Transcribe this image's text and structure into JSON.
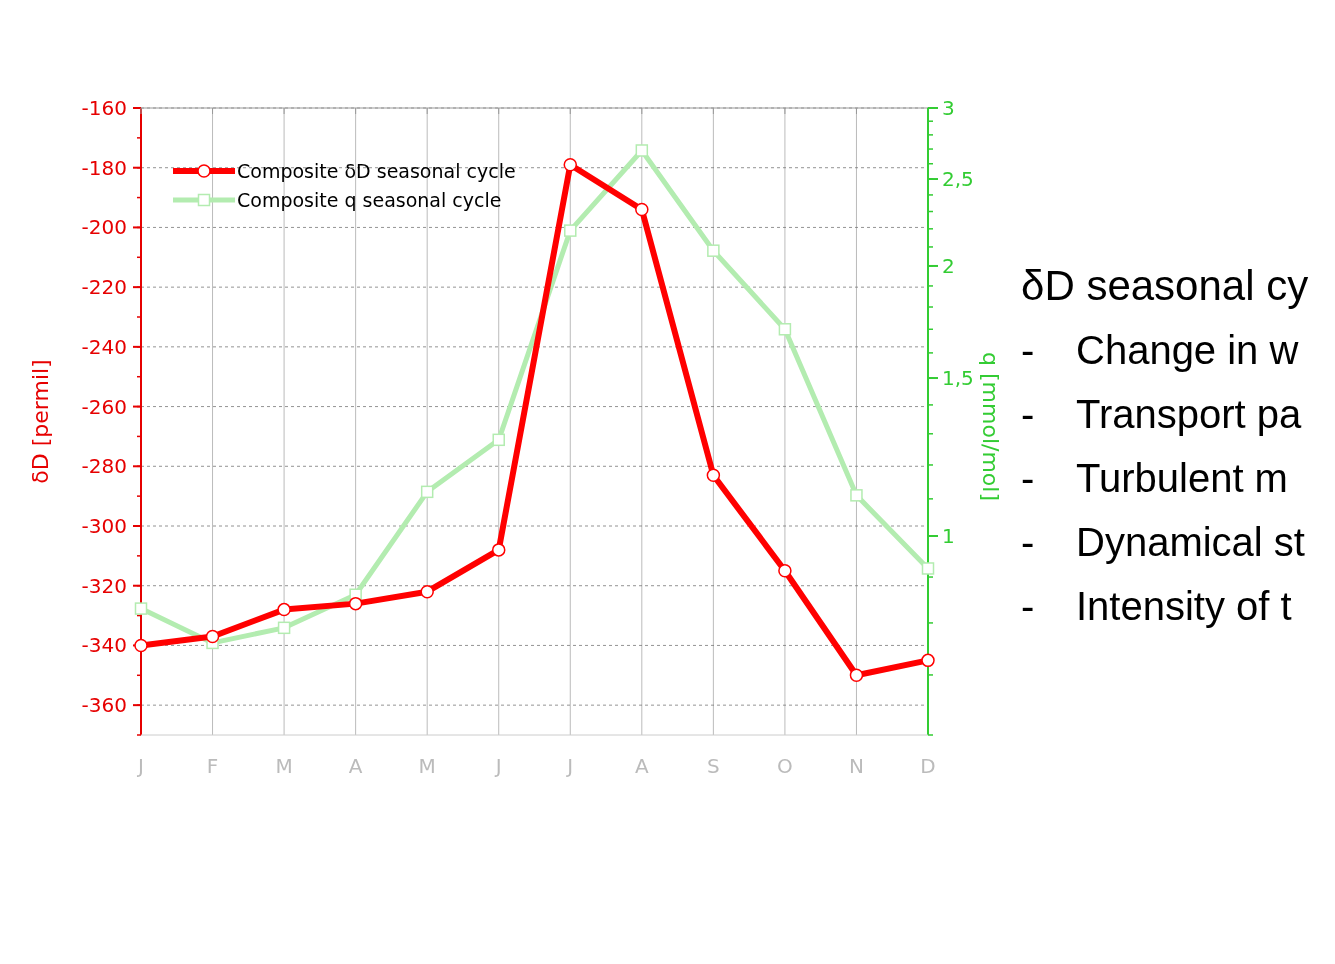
{
  "chart_data": [
    {
      "type": "line",
      "categories": [
        "J",
        "F",
        "M",
        "A",
        "M",
        "J",
        "J",
        "A",
        "S",
        "O",
        "N",
        "D"
      ],
      "ylabel": "δD [permil]",
      "y2label": "q [mmol/mol]",
      "ylim": [
        -370,
        -160
      ],
      "yticks": [
        -160,
        -180,
        -200,
        -220,
        -240,
        -260,
        -280,
        -300,
        -320,
        -340,
        -360
      ],
      "y2lim": [
        0.6,
        3
      ],
      "y2ticks": [
        1,
        {
          "value": 1.5,
          "label": "1,5"
        },
        2,
        {
          "value": 2.5,
          "label": "2,5"
        },
        3
      ],
      "log": "y2",
      "grid": true,
      "legend": "top left",
      "series": [
        {
          "name": "Composite δD seasonal cycle",
          "color": "#ff0000",
          "marker": "circle",
          "values": [
            -340,
            -337,
            -328,
            -326,
            -322,
            -308,
            -179,
            -194,
            -283,
            -315,
            -350,
            -345
          ]
        },
        {
          "name": "Composite q seasonal cycle",
          "color": "#b3ecb0",
          "marker": "square",
          "axis": "y2",
          "values": [
            0.83,
            0.76,
            0.79,
            0.86,
            1.12,
            1.28,
            2.19,
            2.69,
            2.08,
            1.7,
            1.11,
            0.92
          ]
        }
      ]
    },
    {
      "type": "other",
      "title": "δD seasonal cy",
      "annotations": [
        "-    Change in w",
        "-    Transport pa",
        "-    Turbulent m",
        "-    Dynamical st",
        "-    Intensity of t"
      ]
    }
  ]
}
